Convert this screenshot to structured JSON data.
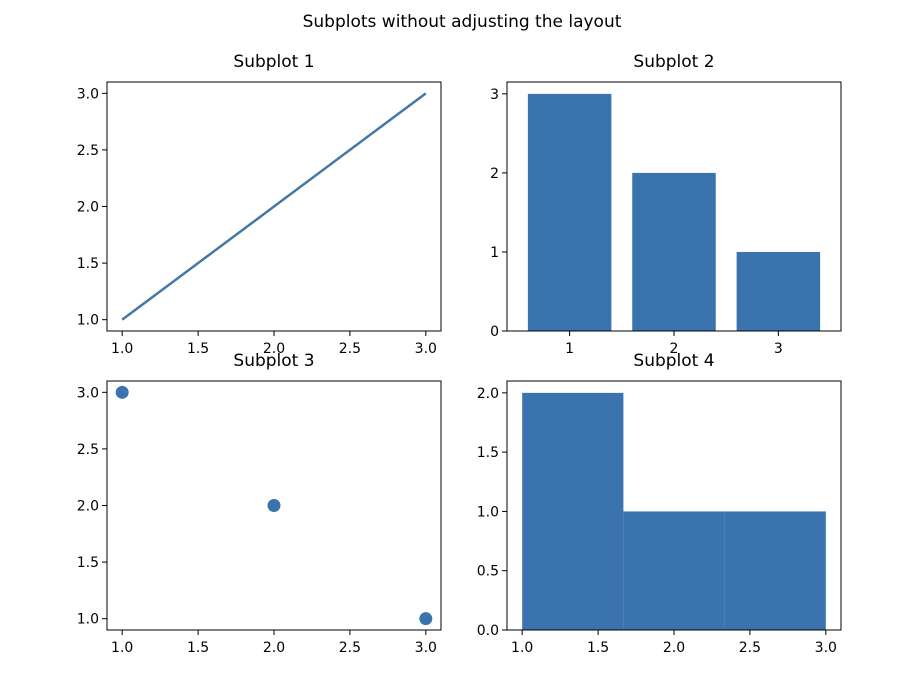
{
  "figure": {
    "suptitle": "Subplots without adjusting the layout"
  },
  "chart_data": [
    {
      "type": "line",
      "title": "Subplot 1",
      "xlabel": "",
      "ylabel": "",
      "x": [
        1,
        2,
        3
      ],
      "y": [
        1,
        2,
        3
      ],
      "xlim": [
        0.9,
        3.1
      ],
      "ylim": [
        0.9,
        3.1
      ],
      "xticks": [
        1.0,
        1.5,
        2.0,
        2.5,
        3.0
      ],
      "xtick_labels": [
        "1.0",
        "1.5",
        "2.0",
        "2.5",
        "3.0"
      ],
      "yticks": [
        1.0,
        1.5,
        2.0,
        2.5,
        3.0
      ],
      "ytick_labels": [
        "1.0",
        "1.5",
        "2.0",
        "2.5",
        "3.0"
      ],
      "grid": false,
      "color": "#4477aa"
    },
    {
      "type": "bar",
      "title": "Subplot 2",
      "xlabel": "",
      "ylabel": "",
      "categories": [
        1,
        2,
        3
      ],
      "values": [
        3,
        2,
        1
      ],
      "xlim": [
        0.4,
        3.6
      ],
      "ylim": [
        0,
        3.15
      ],
      "xticks": [
        1,
        2,
        3
      ],
      "xtick_labels": [
        "1",
        "2",
        "3"
      ],
      "yticks": [
        0,
        1,
        2,
        3
      ],
      "ytick_labels": [
        "0",
        "1",
        "2",
        "3"
      ],
      "grid": false,
      "color": "#3b73ae"
    },
    {
      "type": "scatter",
      "title": "Subplot 3",
      "xlabel": "",
      "ylabel": "",
      "x": [
        1,
        2,
        3
      ],
      "y": [
        3,
        2,
        1
      ],
      "xlim": [
        0.9,
        3.1
      ],
      "ylim": [
        0.9,
        3.1
      ],
      "xticks": [
        1.0,
        1.5,
        2.0,
        2.5,
        3.0
      ],
      "xtick_labels": [
        "1.0",
        "1.5",
        "2.0",
        "2.5",
        "3.0"
      ],
      "yticks": [
        1.0,
        1.5,
        2.0,
        2.5,
        3.0
      ],
      "ytick_labels": [
        "1.0",
        "1.5",
        "2.0",
        "2.5",
        "3.0"
      ],
      "grid": false,
      "color": "#3b73ae"
    },
    {
      "type": "bar",
      "subtype": "histogram",
      "title": "Subplot 4",
      "xlabel": "",
      "ylabel": "",
      "bins": [
        {
          "x0": 1.0,
          "x1": 1.6667,
          "count": 2
        },
        {
          "x0": 1.6667,
          "x1": 2.3333,
          "count": 1
        },
        {
          "x0": 2.3333,
          "x1": 3.0,
          "count": 1
        }
      ],
      "xlim": [
        0.9,
        3.1
      ],
      "ylim": [
        0,
        2.1
      ],
      "xticks": [
        1.0,
        1.5,
        2.0,
        2.5,
        3.0
      ],
      "xtick_labels": [
        "1.0",
        "1.5",
        "2.0",
        "2.5",
        "3.0"
      ],
      "yticks": [
        0,
        0.5,
        1.0,
        1.5,
        2.0
      ],
      "ytick_labels": [
        "0.0",
        "0.5",
        "1.0",
        "1.5",
        "2.0"
      ],
      "grid": false,
      "color": "#3b73ae"
    }
  ]
}
